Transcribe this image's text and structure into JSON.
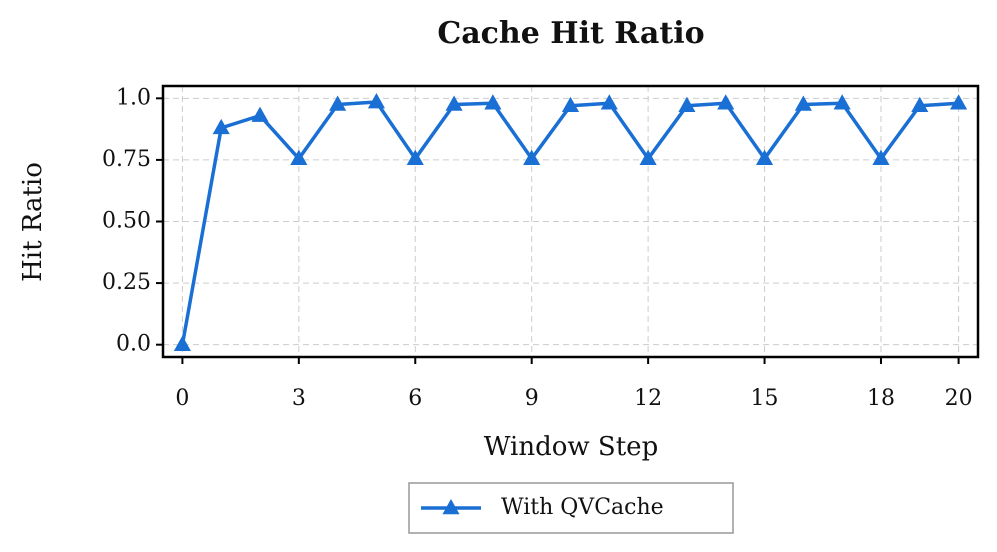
{
  "chart_data": {
    "type": "line",
    "title": "Cache Hit Ratio",
    "x_label": "Window Step",
    "y_label": "Hit Ratio",
    "x": [
      0,
      1,
      2,
      3,
      4,
      5,
      6,
      7,
      8,
      9,
      10,
      11,
      12,
      13,
      14,
      15,
      16,
      17,
      18,
      19,
      20
    ],
    "series": [
      {
        "name": "With QVCache",
        "color": "#1a6fd4",
        "marker": "triangle",
        "values": [
          0,
          0.88,
          0.93,
          0.755,
          0.975,
          0.985,
          0.755,
          0.975,
          0.98,
          0.755,
          0.97,
          0.98,
          0.755,
          0.97,
          0.98,
          0.755,
          0.975,
          0.98,
          0.755,
          0.97,
          0.98
        ]
      }
    ],
    "xlim": [
      -0.5,
      20.5
    ],
    "xticks": [
      0,
      3,
      6,
      9,
      12,
      15,
      18,
      20
    ],
    "ylim": [
      -0.05,
      1.05
    ],
    "yticks": [
      {
        "value": 0,
        "label": "0.0"
      },
      0.25,
      {
        "value": 0.5,
        "label": "0.50"
      },
      0.75,
      {
        "value": 1,
        "label": "1.0"
      }
    ],
    "grid": true,
    "legend": "bottom"
  }
}
